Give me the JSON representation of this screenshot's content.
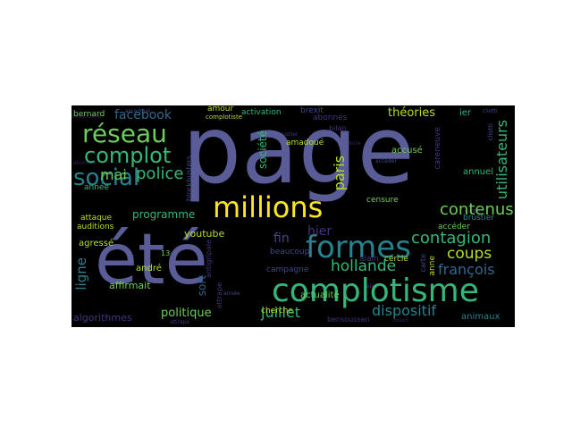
{
  "palette": {
    "dark_purple": "#3f1f59",
    "purple": "#46337e",
    "slate_blue": "#3e4a89",
    "muted_blue": "#5a5c98",
    "blue": "#31688e",
    "teal": "#26828e",
    "sea_green": "#35b779",
    "green": "#6ccd5a",
    "lime": "#b5de2b",
    "yellow": "#fde725"
  },
  "words": {
    "page": "page",
    "ete": "été",
    "complotisme": "complotisme",
    "formes": "formes",
    "millions": "millions",
    "reseau": "réseau",
    "social": "social",
    "complot": "complot",
    "police": "police",
    "mai": "mai",
    "facebook": "facebook",
    "contagion": "contagion",
    "contenus": "contenus",
    "hollande": "hollande",
    "coups": "coups",
    "francois": "françois",
    "dispositif": "dispositif",
    "juillet": "juillet",
    "hier": "hier",
    "fin": "fin",
    "paris": "paris",
    "theories": "théories",
    "utilisateurs": "utilisateurs",
    "ligne": "ligne",
    "politique": "politique",
    "programme": "programme",
    "youtube": "youtube",
    "affirmait": "affirmait",
    "algorithmes": "algorithmes",
    "societe": "société",
    "sort": "sort",
    "agresse": "agressé",
    "andre": "andré",
    "actualite": "actualité",
    "annuel": "annuel",
    "ier": "ier",
    "bernard": "bernard",
    "amour": "amour",
    "activation": "activation",
    "brexit": "brexit",
    "abonnes": "abonnés",
    "amadoue": "amadoué",
    "accuse": "accusé",
    "censure": "censure",
    "annee": "année",
    "attaque": "attaque",
    "auditions": "auditions",
    "cerde": "cercle",
    "alain": "alain",
    "acceder": "accéder",
    "anne": "anne",
    "animaux": "animaux",
    "beaucoup": "beaucoup",
    "campagne": "campagne",
    "cherche": "cherche",
    "bilan": "bilan",
    "brustier": "brustier",
    "bensoussan": "bensoussan",
    "carte": "carte",
    "complotiste": "complotiste",
    "blockbusters": "blockbusters",
    "antigripale": "antigripale",
    "attrape": "attrape",
    "num_13": "13",
    "careneuve": "careneuve",
    "cliotti": "cliotti"
  }
}
